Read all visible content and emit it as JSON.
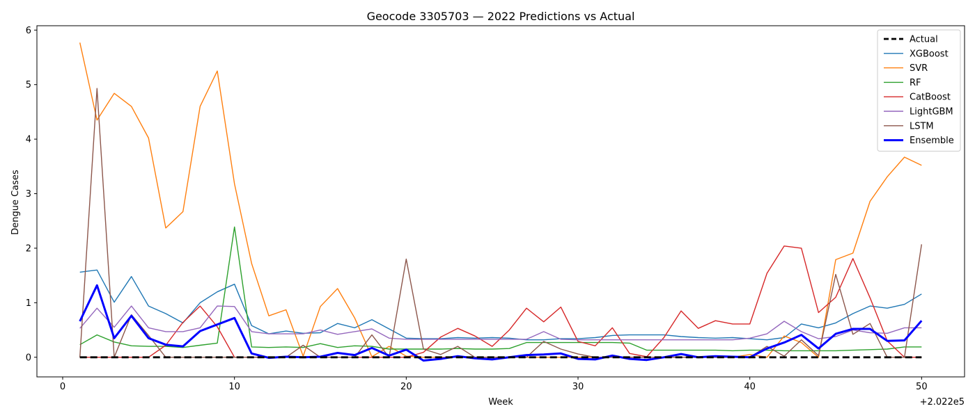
{
  "chart_data": {
    "type": "line",
    "title": "Geocode 3305703 — 2022 Predictions vs Actual",
    "xlabel": "Week",
    "ylabel": "Dengue Cases",
    "x_offset_label": "+2.022e5",
    "xlim": [
      -1.5,
      52.5
    ],
    "ylim": [
      -0.36,
      6.08
    ],
    "xticks": [
      0,
      10,
      20,
      30,
      40,
      50
    ],
    "yticks": [
      0,
      1,
      2,
      3,
      4,
      5,
      6
    ],
    "grid": false,
    "legend_position": "top-right",
    "x": [
      1,
      2,
      3,
      4,
      5,
      6,
      7,
      8,
      9,
      10,
      11,
      12,
      13,
      14,
      15,
      16,
      17,
      18,
      19,
      20,
      21,
      22,
      23,
      24,
      25,
      26,
      27,
      28,
      29,
      30,
      31,
      32,
      33,
      34,
      35,
      36,
      37,
      38,
      39,
      40,
      41,
      42,
      43,
      44,
      45,
      46,
      47,
      48,
      49,
      50
    ],
    "series": [
      {
        "name": "Actual",
        "color": "#000000",
        "style": "dashed",
        "width": 2.8,
        "values": [
          0,
          0,
          0,
          0,
          0,
          0,
          0,
          0,
          0,
          0,
          0,
          0,
          0,
          0,
          0,
          0,
          0,
          0,
          0,
          0,
          0,
          0,
          0,
          0,
          0,
          0,
          0,
          0,
          0,
          0,
          0,
          0,
          0,
          0,
          0,
          0,
          0,
          0,
          0,
          0,
          0,
          0,
          0,
          0,
          0,
          0,
          0,
          0,
          0,
          0
        ]
      },
      {
        "name": "XGBoost",
        "color": "#1f77b4",
        "style": "solid",
        "width": 1.4,
        "values": [
          1.56,
          1.6,
          1.01,
          1.48,
          0.94,
          0.8,
          0.63,
          1.0,
          1.2,
          1.34,
          0.58,
          0.43,
          0.48,
          0.44,
          0.45,
          0.62,
          0.54,
          0.69,
          0.52,
          0.35,
          0.34,
          0.34,
          0.36,
          0.35,
          0.36,
          0.35,
          0.32,
          0.32,
          0.34,
          0.34,
          0.36,
          0.4,
          0.41,
          0.41,
          0.41,
          0.38,
          0.36,
          0.35,
          0.36,
          0.34,
          0.32,
          0.36,
          0.61,
          0.54,
          0.63,
          0.8,
          0.94,
          0.9,
          0.97,
          1.16
        ]
      },
      {
        "name": "SVR",
        "color": "#ff7f0e",
        "style": "solid",
        "width": 1.4,
        "values": [
          5.77,
          4.35,
          4.84,
          4.6,
          4.02,
          2.37,
          2.67,
          4.6,
          5.25,
          3.18,
          1.72,
          0.76,
          0.87,
          0.02,
          0.93,
          1.26,
          0.72,
          0.01,
          0.2,
          0.02,
          0.0,
          0.0,
          0.0,
          0.0,
          0.0,
          0.0,
          0.0,
          0.0,
          0.0,
          0.0,
          0.0,
          0.0,
          0.0,
          0.0,
          0.0,
          0.0,
          0.0,
          0.0,
          0.0,
          0.05,
          0.0,
          0.39,
          0.27,
          0.0,
          1.79,
          1.91,
          2.86,
          3.31,
          3.67,
          3.52
        ]
      },
      {
        "name": "RF",
        "color": "#2ca02c",
        "style": "solid",
        "width": 1.4,
        "values": [
          0.23,
          0.41,
          0.28,
          0.21,
          0.2,
          0.2,
          0.18,
          0.22,
          0.26,
          2.39,
          0.19,
          0.18,
          0.19,
          0.18,
          0.25,
          0.18,
          0.21,
          0.2,
          0.15,
          0.15,
          0.15,
          0.15,
          0.16,
          0.15,
          0.15,
          0.16,
          0.27,
          0.27,
          0.27,
          0.27,
          0.27,
          0.27,
          0.26,
          0.13,
          0.13,
          0.13,
          0.13,
          0.13,
          0.12,
          0.13,
          0.13,
          0.12,
          0.12,
          0.12,
          0.12,
          0.13,
          0.14,
          0.15,
          0.19,
          0.19
        ]
      },
      {
        "name": "CatBoost",
        "color": "#d62728",
        "style": "solid",
        "width": 1.4,
        "values": [
          0,
          0,
          0,
          0,
          0,
          0.22,
          0.64,
          0.94,
          0.56,
          0.0,
          0.0,
          0.0,
          0.0,
          0.0,
          0.0,
          0.0,
          0.0,
          0.0,
          0.0,
          0.0,
          0.09,
          0.37,
          0.53,
          0.39,
          0.2,
          0.5,
          0.9,
          0.65,
          0.92,
          0.29,
          0.21,
          0.54,
          0.07,
          0.01,
          0.36,
          0.85,
          0.53,
          0.67,
          0.61,
          0.61,
          1.54,
          2.04,
          2.0,
          0.82,
          1.1,
          1.81,
          1.09,
          0.3,
          0.0,
          0.0
        ]
      },
      {
        "name": "LightGBM",
        "color": "#9467bd",
        "style": "solid",
        "width": 1.4,
        "values": [
          0.53,
          0.9,
          0.55,
          0.94,
          0.54,
          0.47,
          0.47,
          0.54,
          0.94,
          0.93,
          0.47,
          0.43,
          0.43,
          0.43,
          0.5,
          0.42,
          0.47,
          0.52,
          0.35,
          0.33,
          0.33,
          0.33,
          0.33,
          0.33,
          0.33,
          0.33,
          0.33,
          0.47,
          0.33,
          0.32,
          0.32,
          0.32,
          0.32,
          0.32,
          0.32,
          0.32,
          0.32,
          0.32,
          0.32,
          0.35,
          0.43,
          0.66,
          0.47,
          0.34,
          0.38,
          0.5,
          0.45,
          0.44,
          0.54,
          0.54
        ]
      },
      {
        "name": "LSTM",
        "color": "#8c564b",
        "style": "solid",
        "width": 1.4,
        "values": [
          0.0,
          4.93,
          0.0,
          0.78,
          0.4,
          0.0,
          0.0,
          0.0,
          0.0,
          0.0,
          0.0,
          0.0,
          0.0,
          0.22,
          0.0,
          0.0,
          0.0,
          0.41,
          0.0,
          1.8,
          0.15,
          0.05,
          0.2,
          0.0,
          0.0,
          0.0,
          0.0,
          0.29,
          0.15,
          0.06,
          0.0,
          0.0,
          0.0,
          0.0,
          0.0,
          0.0,
          0.0,
          0.0,
          0.0,
          0.0,
          0.2,
          0.02,
          0.32,
          0.03,
          1.52,
          0.42,
          0.62,
          0.0,
          0.0,
          2.07
        ]
      },
      {
        "name": "Ensemble",
        "color": "#0000ff",
        "style": "solid",
        "width": 3,
        "values": [
          0.66,
          1.32,
          0.35,
          0.76,
          0.35,
          0.23,
          0.2,
          0.48,
          0.6,
          0.72,
          0.07,
          -0.01,
          0.01,
          0.0,
          0.01,
          0.08,
          0.04,
          0.17,
          0.03,
          0.14,
          -0.06,
          -0.03,
          0.02,
          -0.02,
          -0.04,
          0.0,
          0.04,
          0.05,
          0.07,
          -0.03,
          -0.04,
          0.03,
          -0.03,
          -0.05,
          0.0,
          0.06,
          0.0,
          0.02,
          0.01,
          0.0,
          0.16,
          0.27,
          0.41,
          0.16,
          0.43,
          0.52,
          0.52,
          0.3,
          0.31,
          0.67
        ]
      }
    ]
  }
}
